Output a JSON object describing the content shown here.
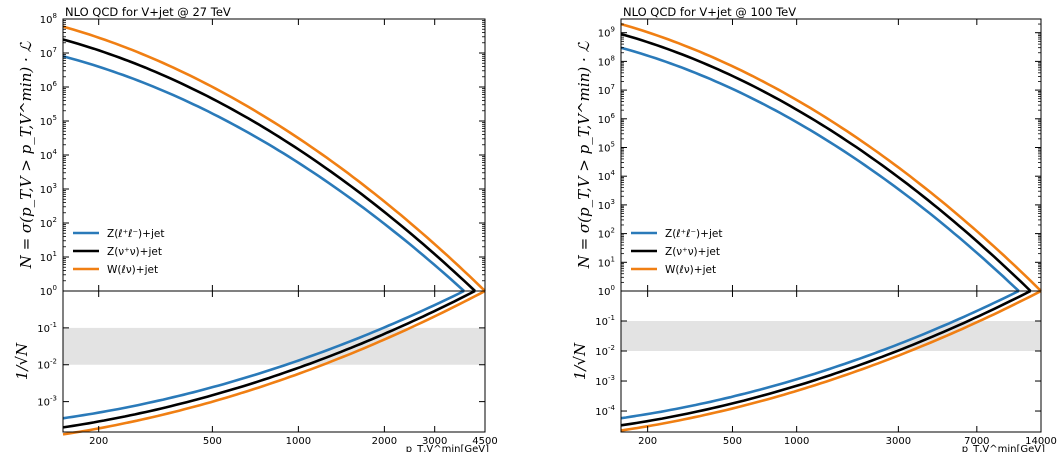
{
  "chart_data": [
    {
      "type": "line",
      "title": "NLO QCD for V+jet @ 27 TeV",
      "ylabel": "N = σ(p_T,V > p_T,V^min) · ℒ",
      "ratio_ylabel": "1/√N",
      "xlabel": "p_T,V^min[GeV]",
      "xscale": "log",
      "yscale": "log",
      "xlim": [
        150,
        4500
      ],
      "ylim": [
        1,
        100000000
      ],
      "ratio_ylim": [
        0.00015,
        1
      ],
      "x_ticks": [
        200,
        500,
        1000,
        2000,
        3000,
        4500
      ],
      "y_ticks": [
        1,
        10,
        100,
        1000,
        10000,
        100000,
        1000000,
        10000000,
        100000000
      ],
      "y_tick_labels": [
        "10^0",
        "10^1",
        "10^2",
        "10^3",
        "10^4",
        "10^5",
        "10^6",
        "10^7",
        "10^8"
      ],
      "ratio_y_ticks": [
        0.001,
        0.01,
        0.1
      ],
      "ratio_y_tick_labels": [
        "10^-3",
        "10^-2",
        "10^-1"
      ],
      "band": [
        0.01,
        0.1
      ],
      "legend_position": "bottom-left",
      "series": [
        {
          "name": "Z(ℓ⁺ℓ⁻)+jet",
          "color": "#2a7ab9",
          "x": [
            150,
            3800
          ],
          "y": [
            8000000,
            1
          ]
        },
        {
          "name": "Z(ν⁺ν)+jet",
          "color": "#000000",
          "x": [
            150,
            4150
          ],
          "y": [
            25000000,
            1
          ]
        },
        {
          "name": "W(ℓν)+jet",
          "color": "#f07f13",
          "x": [
            150,
            4500
          ],
          "y": [
            60000000,
            1
          ]
        }
      ]
    },
    {
      "type": "line",
      "title": "NLO QCD for V+jet @ 100 TeV",
      "ylabel": "N = σ(p_T,V > p_T,V^min) · ℒ",
      "ratio_ylabel": "1/√N",
      "xlabel": "p_T,V^min[GeV]",
      "xscale": "log",
      "yscale": "log",
      "xlim": [
        150,
        14000
      ],
      "ylim": [
        1,
        3000000000
      ],
      "ratio_ylim": [
        2e-05,
        1
      ],
      "x_ticks": [
        200,
        500,
        1000,
        3000,
        7000,
        14000
      ],
      "y_ticks": [
        1,
        10,
        100,
        1000,
        10000,
        100000,
        1000000,
        10000000,
        100000000,
        1000000000
      ],
      "y_tick_labels": [
        "10^0",
        "10^1",
        "10^2",
        "10^3",
        "10^4",
        "10^5",
        "10^6",
        "10^7",
        "10^8",
        "10^9"
      ],
      "ratio_y_ticks": [
        0.0001,
        0.001,
        0.01,
        0.1
      ],
      "ratio_y_tick_labels": [
        "10^-4",
        "10^-3",
        "10^-2",
        "10^-1"
      ],
      "band": [
        0.01,
        0.1
      ],
      "legend_position": "bottom-left",
      "series": [
        {
          "name": "Z(ℓ⁺ℓ⁻)+jet",
          "color": "#2a7ab9",
          "x": [
            150,
            11000
          ],
          "y": [
            300000000,
            1
          ]
        },
        {
          "name": "Z(ν⁺ν)+jet",
          "color": "#000000",
          "x": [
            150,
            12500
          ],
          "y": [
            900000000,
            1
          ]
        },
        {
          "name": "W(ℓν)+jet",
          "color": "#f07f13",
          "x": [
            150,
            14000
          ],
          "y": [
            2000000000,
            1
          ]
        }
      ]
    }
  ]
}
